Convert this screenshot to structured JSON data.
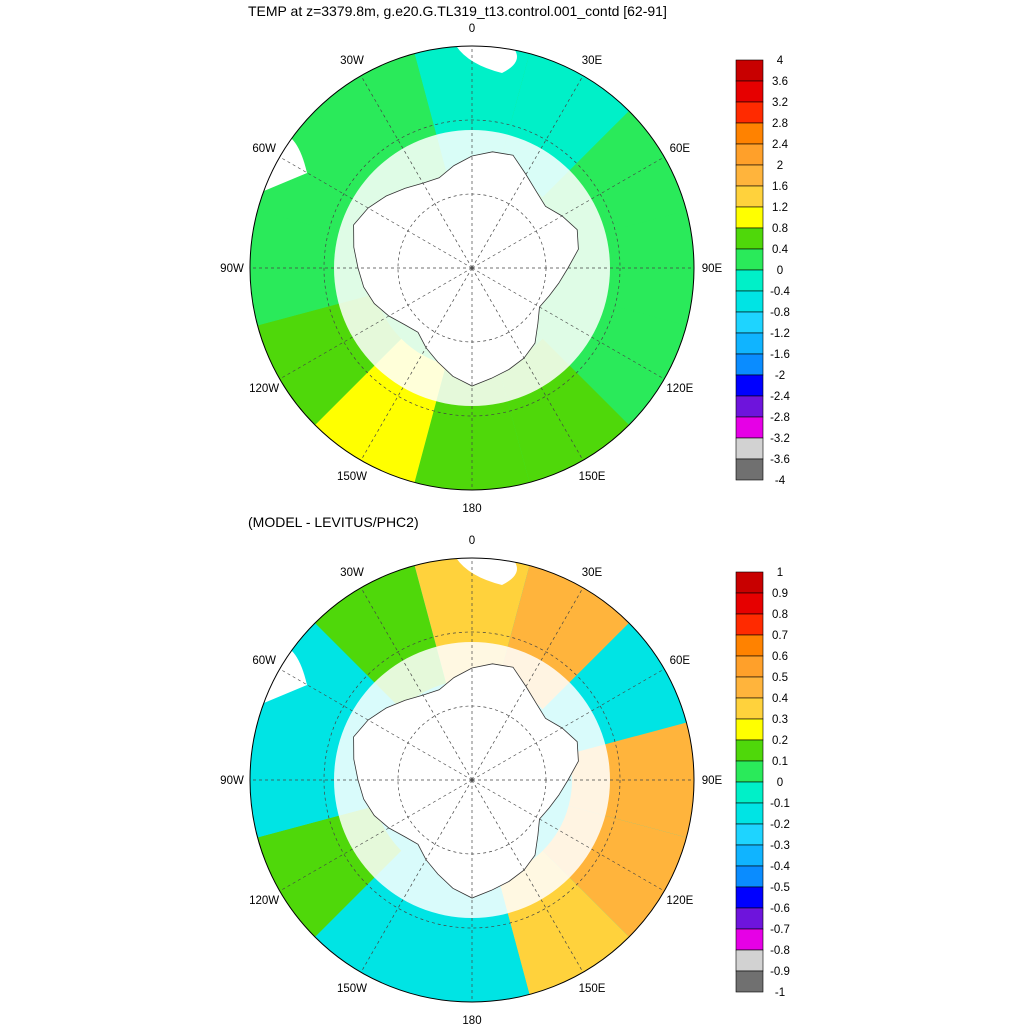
{
  "maps": [
    {
      "title": "TEMP at z=3379.8m, g.e20.G.TL319_t13.control.001_contd [62-91]",
      "lon_labels": {
        "top": "0",
        "e30": "30E",
        "e60": "60E",
        "e90": "90E",
        "e120": "120E",
        "e150": "150E",
        "bottom": "180",
        "w150": "150W",
        "w120": "120W",
        "w90": "90W",
        "w60": "60W",
        "w30": "30W"
      },
      "colorbar": {
        "labels": [
          "4",
          "3.6",
          "3.2",
          "2.8",
          "2.4",
          "2",
          "1.6",
          "1.2",
          "0.8",
          "0.4",
          "0",
          "-0.4",
          "-0.8",
          "-1.2",
          "-1.6",
          "-2",
          "-2.4",
          "-2.8",
          "-3.2",
          "-3.6",
          "-4"
        ],
        "colors": [
          "#c80000",
          "#e60000",
          "#ff2a00",
          "#ff8200",
          "#ffa02a",
          "#ffb43c",
          "#ffd23c",
          "#ffff00",
          "#4fd80a",
          "#2aea5a",
          "#00f0c8",
          "#00e4e4",
          "#1ed4ff",
          "#10b4ff",
          "#0a8cff",
          "#0000ff",
          "#6e14dc",
          "#e600e6",
          "#d2d2d2",
          "#707070"
        ]
      },
      "field": {
        "sector_colors": [
          "#00f0c8",
          "#00f0c8",
          "#2aea5a",
          "#2aea5a",
          "#2aea5a",
          "#4fd80a",
          "#4fd80a",
          "#ffff00",
          "#4fd80a",
          "#2aea5a",
          "#2aea5a",
          "#2aea5a"
        ],
        "sector_start_deg": -15,
        "sector_step_deg": 30
      }
    },
    {
      "title": "(MODEL - LEVITUS/PHC2)",
      "lon_labels": {
        "top": "0",
        "e30": "30E",
        "e60": "60E",
        "e90": "90E",
        "e120": "120E",
        "e150": "150E",
        "bottom": "180",
        "w150": "150W",
        "w120": "120W",
        "w90": "90W",
        "w60": "60W",
        "w30": "30W"
      },
      "colorbar": {
        "labels": [
          "1",
          "0.9",
          "0.8",
          "0.7",
          "0.6",
          "0.5",
          "0.4",
          "0.3",
          "0.2",
          "0.1",
          "0",
          "-0.1",
          "-0.2",
          "-0.3",
          "-0.4",
          "-0.5",
          "-0.6",
          "-0.7",
          "-0.8",
          "-0.9",
          "-1"
        ],
        "colors": [
          "#c80000",
          "#e60000",
          "#ff2a00",
          "#ff8200",
          "#ffa02a",
          "#ffb43c",
          "#ffd23c",
          "#ffff00",
          "#4fd80a",
          "#2aea5a",
          "#00f0c8",
          "#00e4e4",
          "#1ed4ff",
          "#10b4ff",
          "#0a8cff",
          "#0000ff",
          "#6e14dc",
          "#e600e6",
          "#d2d2d2",
          "#707070"
        ]
      },
      "field": {
        "sector_colors": [
          "#ffd23c",
          "#ffb43c",
          "#00e4e4",
          "#ffb43c",
          "#ffb43c",
          "#ffd23c",
          "#00e4e4",
          "#00e4e4",
          "#4fd80a",
          "#00e4e4",
          "#00e4e4",
          "#4fd80a"
        ],
        "sector_start_deg": -15,
        "sector_step_deg": 30
      }
    }
  ]
}
